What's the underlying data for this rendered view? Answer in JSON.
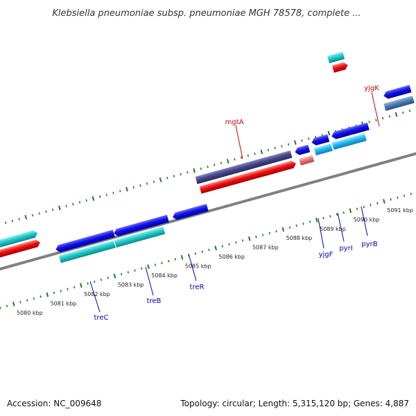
{
  "title": "Klebsiella pneumoniae subsp. pneumoniae MGH 78578, complete ...",
  "footer": {
    "accession": "Accession: NC_009648",
    "summary": "Topology: circular; Length: 5,315,120 bp; Genes: 4,887"
  },
  "colors": {
    "backbone": "#808080",
    "tick": "#1e7a1e",
    "kbp_label": "#222222",
    "gene_label_blue": "#0000b0",
    "gene_label_red": "#d00000"
  },
  "kbp_ticks": [
    "5080 kbp",
    "5081 kbp",
    "5082 kbp",
    "5083 kbp",
    "5084 kbp",
    "5085 kbp",
    "5086 kbp",
    "5087 kbp",
    "5088 kbp",
    "5089 kbp",
    "5090 kbp",
    "5091 kbp"
  ],
  "gene_labels": [
    {
      "name": "mgtA",
      "color": "red"
    },
    {
      "name": "yjgK",
      "color": "red"
    },
    {
      "name": "treC",
      "color": "blue"
    },
    {
      "name": "treB",
      "color": "blue"
    },
    {
      "name": "treR",
      "color": "blue"
    },
    {
      "name": "yjgF",
      "color": "blue"
    },
    {
      "name": "pyrI",
      "color": "blue"
    },
    {
      "name": "pyrB",
      "color": "blue"
    }
  ]
}
